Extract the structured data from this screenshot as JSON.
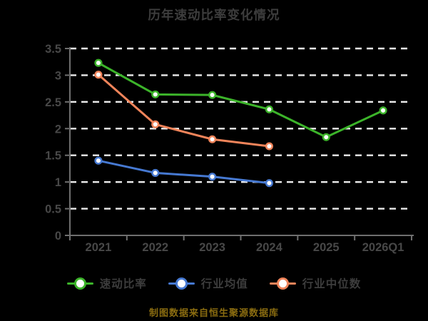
{
  "title": "历年速动比率变化情况",
  "footer": "制图数据来自恒生聚源数据库",
  "colors": {
    "background": "#000000",
    "title_text": "#3d3d3d",
    "axis_line": "#6f6f6f",
    "axis_label": "#484848",
    "gridline": "#ececec",
    "legend_text": "#3d3d3d",
    "footer_text": "#8a6c10",
    "marker_fill": "#ffffff"
  },
  "chart_data": {
    "type": "line",
    "title": "历年速动比率变化情况",
    "categories": [
      "2021",
      "2022",
      "2023",
      "2024",
      "2025",
      "2026Q1"
    ],
    "series": [
      {
        "name": "速动比率",
        "color": "#3cb42a",
        "values": [
          3.23,
          2.64,
          2.63,
          2.36,
          1.84,
          2.34
        ]
      },
      {
        "name": "行业均值",
        "color": "#4679d2",
        "values": [
          1.4,
          1.17,
          1.1,
          0.98
        ]
      },
      {
        "name": "行业中位数",
        "color": "#f0845a",
        "values": [
          3.01,
          2.08,
          1.8,
          1.67
        ]
      }
    ],
    "ylim": [
      0,
      3.5
    ],
    "y_tick_step": 0.5,
    "y_tick_labels": [
      "0",
      "0.5",
      "1",
      "1.5",
      "2",
      "2.5",
      "3",
      "3.5"
    ],
    "grid": "dashed-horizontal",
    "legend_position": "bottom",
    "marker": "circle-white-fill"
  }
}
